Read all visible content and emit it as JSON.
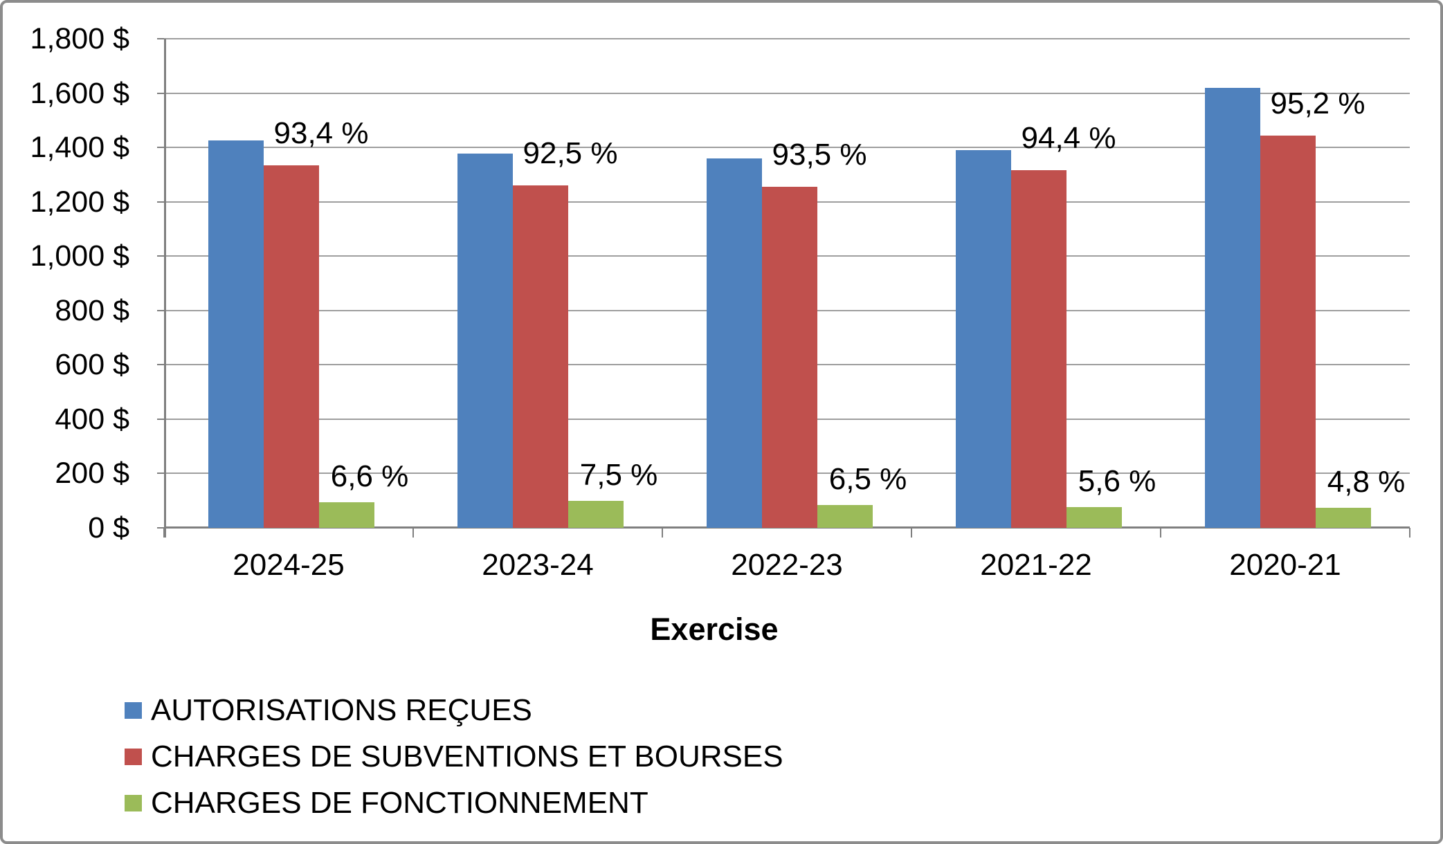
{
  "chart_data": {
    "type": "bar",
    "title": "",
    "xlabel": "Exercise",
    "ylabel": "",
    "categories": [
      "2024-25",
      "2023-24",
      "2022-23",
      "2021-22",
      "2020-21"
    ],
    "series": [
      {
        "name": "AUTORISATIONS REÇUES",
        "color": "#4F81BD",
        "values": [
          1425,
          1377,
          1360,
          1390,
          1620
        ],
        "labels": [
          "",
          "",
          "",
          "",
          ""
        ]
      },
      {
        "name": "CHARGES DE SUBVENTIONS ET BOURSES",
        "color": "#C0504D",
        "values": [
          1334,
          1260,
          1254,
          1316,
          1443
        ],
        "labels": [
          "93,4 %",
          "92,5 %",
          "93,5 %",
          "94,4 %",
          "95,2 %"
        ]
      },
      {
        "name": "CHARGES DE FONCTIONNEMENT",
        "color": "#9BBB59",
        "values": [
          94,
          100,
          85,
          76,
          74
        ],
        "labels": [
          "6,6 %",
          "7,5 %",
          "6,5 %",
          "5,6 %",
          "4,8 %"
        ]
      }
    ],
    "y_axis": {
      "min": 0,
      "max": 1800,
      "step": 200,
      "tick_labels": [
        "0 $",
        "200 $",
        "400 $",
        "600 $",
        "800 $",
        "1,000 $",
        "1,200 $",
        "1,400 $",
        "1,600 $",
        "1,800 $"
      ]
    },
    "grid": true,
    "legend_position": "bottom-left",
    "frame_border_color": "#8C8C8C",
    "gridline_color": "#9E9E9E",
    "axis_color": "#7F7F7F"
  }
}
